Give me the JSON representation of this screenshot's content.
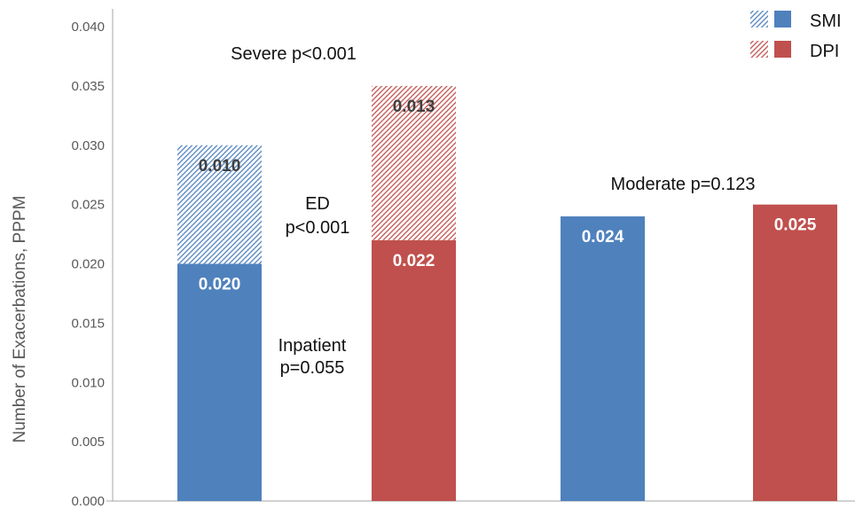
{
  "chart_data": {
    "type": "bar",
    "stacked": true,
    "ylabel": "Number of Exacerbations, PPPM",
    "ylim": [
      0,
      0.0415
    ],
    "yticks": [
      "0.000",
      "0.005",
      "0.010",
      "0.015",
      "0.020",
      "0.025",
      "0.030",
      "0.035",
      "0.040"
    ],
    "grid": false,
    "legend": {
      "position": "top-right"
    },
    "series": [
      {
        "name": "SMI",
        "color": "#4F81BD"
      },
      {
        "name": "DPI",
        "color": "#C0504D"
      }
    ],
    "bars": [
      {
        "series": 0,
        "segments": [
          {
            "value": 0.02,
            "label": "0.020",
            "hatched": false
          },
          {
            "value": 0.01,
            "label": "0.010",
            "hatched": true
          }
        ]
      },
      {
        "series": 1,
        "segments": [
          {
            "value": 0.022,
            "label": "0.022",
            "hatched": false
          },
          {
            "value": 0.013,
            "label": "0.013",
            "hatched": true
          }
        ]
      },
      {
        "series": 0,
        "segments": [
          {
            "value": 0.024,
            "label": "0.024",
            "hatched": false
          }
        ]
      },
      {
        "series": 1,
        "segments": [
          {
            "value": 0.025,
            "label": "0.025",
            "hatched": false
          }
        ]
      }
    ],
    "annotations": [
      {
        "lines": [
          "Severe p<0.001"
        ]
      },
      {
        "lines": [
          "ED",
          "p<0.001"
        ]
      },
      {
        "lines": [
          "Inpatient",
          "p=0.055"
        ]
      },
      {
        "lines": [
          "Moderate p=0.123"
        ]
      }
    ]
  }
}
